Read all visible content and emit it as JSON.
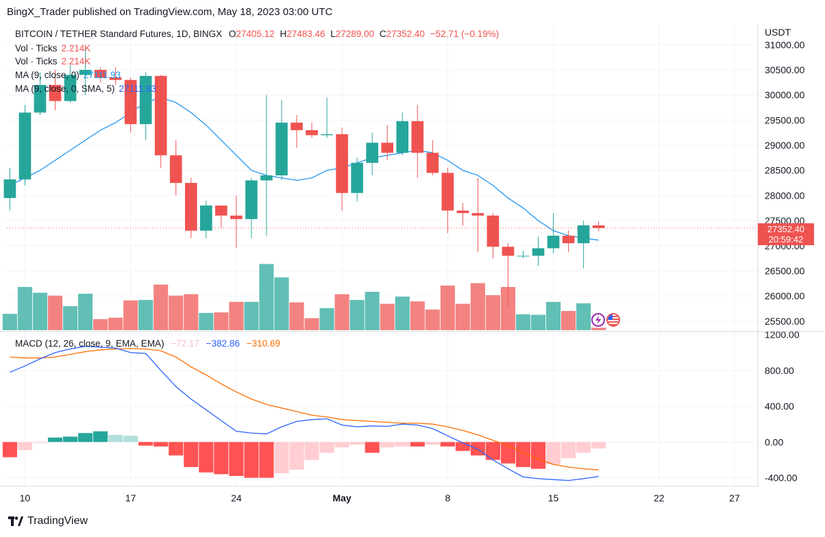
{
  "header": {
    "publisher": "BingX_Trader published on TradingView.com, May 18, 2023 03:00 UTC"
  },
  "legend": {
    "symbol": "BITCOIN / TETHER Standard Futures, 1D, BINGX",
    "o_label": "O",
    "o_value": "27405.12",
    "h_label": "H",
    "h_value": "27483.46",
    "l_label": "L",
    "l_value": "27289.00",
    "c_label": "C",
    "c_value": "27352.40",
    "change": "−52.71 (−0.19%)",
    "vol1_label": "Vol · Ticks",
    "vol1_value": "2.214K",
    "vol2_label": "Vol · Ticks",
    "vol2_value": "2.214K",
    "ma1_label": "MA (9, close, 0)",
    "ma1_value": "27111.93",
    "ma2_label": "MA (9, close, 0, SMA, 5)",
    "ma2_value": "27111.93",
    "macd_label": "MACD (12, 26, close, 9, EMA, EMA)",
    "macd_hist": "−72.17",
    "macd_line": "−382.86",
    "macd_signal": "−310.69"
  },
  "price_tag": {
    "price": "27352.40",
    "countdown": "20:59:42"
  },
  "footer": {
    "brand": "TradingView"
  },
  "colors": {
    "up": "#26a69a",
    "down": "#ef5350",
    "ma": "#2196f3",
    "macd": "#2962ff",
    "signal": "#ff6d00"
  },
  "chart_data": {
    "type": "candlestick",
    "currency": "USDT",
    "price_axis": {
      "ticks": [
        "25500.00",
        "26000.00",
        "26500.00",
        "27000.00",
        "27500.00",
        "28000.00",
        "28500.00",
        "29000.00",
        "29500.00",
        "30000.00",
        "30500.00",
        "31000.00"
      ],
      "range": [
        25320,
        31400
      ]
    },
    "macd_axis": {
      "ticks": [
        "-400.00",
        "0.00",
        "400.00",
        "800.00",
        "1200.00"
      ],
      "range": [
        -480,
        1220
      ]
    },
    "x_axis": {
      "ticks": [
        {
          "label": "10",
          "index": 1
        },
        {
          "label": "17",
          "index": 8
        },
        {
          "label": "24",
          "index": 15
        },
        {
          "label": "May",
          "index": 22
        },
        {
          "label": "8",
          "index": 29
        },
        {
          "label": "15",
          "index": 36
        },
        {
          "label": "22",
          "index": 43
        },
        {
          "label": "27",
          "index": 48
        }
      ],
      "index_range": [
        -0.2,
        49.5
      ]
    },
    "candles": [
      {
        "date": "Apr 9",
        "o": 27950,
        "h": 28550,
        "l": 27700,
        "c": 28320
      },
      {
        "date": "Apr 10",
        "o": 28320,
        "h": 29800,
        "l": 28200,
        "c": 29650
      },
      {
        "date": "Apr 11",
        "o": 29650,
        "h": 30450,
        "l": 29600,
        "c": 30200
      },
      {
        "date": "Apr 12",
        "o": 30200,
        "h": 30500,
        "l": 29700,
        "c": 29880
      },
      {
        "date": "Apr 13",
        "o": 29880,
        "h": 30600,
        "l": 29850,
        "c": 30400
      },
      {
        "date": "Apr 14",
        "o": 30400,
        "h": 30950,
        "l": 30000,
        "c": 30500
      },
      {
        "date": "Apr 15",
        "o": 30500,
        "h": 30550,
        "l": 30250,
        "c": 30350
      },
      {
        "date": "Apr 16",
        "o": 30350,
        "h": 30550,
        "l": 30200,
        "c": 30300
      },
      {
        "date": "Apr 17",
        "o": 30300,
        "h": 30350,
        "l": 29250,
        "c": 29420
      },
      {
        "date": "Apr 18",
        "o": 29420,
        "h": 30450,
        "l": 29100,
        "c": 30380
      },
      {
        "date": "Apr 19",
        "o": 30380,
        "h": 30400,
        "l": 28550,
        "c": 28800
      },
      {
        "date": "Apr 20",
        "o": 28800,
        "h": 29100,
        "l": 28000,
        "c": 28250
      },
      {
        "date": "Apr 21",
        "o": 28250,
        "h": 28350,
        "l": 27150,
        "c": 27300
      },
      {
        "date": "Apr 22",
        "o": 27300,
        "h": 27900,
        "l": 27150,
        "c": 27800
      },
      {
        "date": "Apr 23",
        "o": 27800,
        "h": 27800,
        "l": 27350,
        "c": 27600
      },
      {
        "date": "Apr 24",
        "o": 27600,
        "h": 28000,
        "l": 26950,
        "c": 27530
      },
      {
        "date": "Apr 25",
        "o": 27530,
        "h": 28350,
        "l": 27150,
        "c": 28300
      },
      {
        "date": "Apr 26",
        "o": 28300,
        "h": 30000,
        "l": 27200,
        "c": 28400
      },
      {
        "date": "Apr 27",
        "o": 28400,
        "h": 29900,
        "l": 28300,
        "c": 29450
      },
      {
        "date": "Apr 28",
        "o": 29450,
        "h": 29600,
        "l": 28950,
        "c": 29300
      },
      {
        "date": "Apr 29",
        "o": 29300,
        "h": 29450,
        "l": 29150,
        "c": 29200
      },
      {
        "date": "Apr 30",
        "o": 29200,
        "h": 29950,
        "l": 29150,
        "c": 29220
      },
      {
        "date": "May 1",
        "o": 29220,
        "h": 29350,
        "l": 27700,
        "c": 28050
      },
      {
        "date": "May 2",
        "o": 28050,
        "h": 28750,
        "l": 27880,
        "c": 28650
      },
      {
        "date": "May 3",
        "o": 28650,
        "h": 29250,
        "l": 28400,
        "c": 29050
      },
      {
        "date": "May 4",
        "o": 29050,
        "h": 29400,
        "l": 28700,
        "c": 28850
      },
      {
        "date": "May 5",
        "o": 28850,
        "h": 29650,
        "l": 28800,
        "c": 29480
      },
      {
        "date": "May 6",
        "o": 29480,
        "h": 29800,
        "l": 28350,
        "c": 28850
      },
      {
        "date": "May 7",
        "o": 28850,
        "h": 29100,
        "l": 28400,
        "c": 28450
      },
      {
        "date": "May 8",
        "o": 28450,
        "h": 28550,
        "l": 27250,
        "c": 27700
      },
      {
        "date": "May 9",
        "o": 27700,
        "h": 27850,
        "l": 27400,
        "c": 27650
      },
      {
        "date": "May 10",
        "o": 27650,
        "h": 28350,
        "l": 26880,
        "c": 27600
      },
      {
        "date": "May 11",
        "o": 27600,
        "h": 27650,
        "l": 26750,
        "c": 26980
      },
      {
        "date": "May 12",
        "o": 26980,
        "h": 27050,
        "l": 25800,
        "c": 26800
      },
      {
        "date": "May 13",
        "o": 26800,
        "h": 26900,
        "l": 26750,
        "c": 26800
      },
      {
        "date": "May 14",
        "o": 26800,
        "h": 27180,
        "l": 26600,
        "c": 26950
      },
      {
        "date": "May 15",
        "o": 26950,
        "h": 27650,
        "l": 26850,
        "c": 27200
      },
      {
        "date": "May 16",
        "o": 27200,
        "h": 27300,
        "l": 26870,
        "c": 27050
      },
      {
        "date": "May 17",
        "o": 27050,
        "h": 27500,
        "l": 26550,
        "c": 27405
      },
      {
        "date": "May 18",
        "o": 27405.12,
        "h": 27483.46,
        "l": 27289.0,
        "c": 27352.4
      }
    ],
    "volume_rel": [
      0.34,
      0.9,
      0.78,
      0.72,
      0.5,
      0.76,
      0.23,
      0.26,
      0.62,
      0.63,
      0.95,
      0.72,
      0.75,
      0.36,
      0.37,
      0.59,
      0.59,
      1.38,
      1.1,
      0.58,
      0.25,
      0.46,
      0.75,
      0.63,
      0.8,
      0.55,
      0.7,
      0.6,
      0.43,
      0.93,
      0.55,
      0.98,
      0.73,
      0.9,
      0.33,
      0.32,
      0.59,
      0.4,
      0.56,
      0.05
    ],
    "ma": [
      28200,
      28350,
      28500,
      28700,
      28900,
      29100,
      29300,
      29450,
      29650,
      29850,
      29950,
      29850,
      29650,
      29400,
      29100,
      28800,
      28500,
      28400,
      28350,
      28300,
      28350,
      28500,
      28550,
      28650,
      28750,
      28800,
      28850,
      28900,
      28850,
      28700,
      28500,
      28400,
      28200,
      27950,
      27750,
      27500,
      27300,
      27200,
      27150,
      27112
    ],
    "macd_line": [
      780,
      850,
      930,
      1000,
      1040,
      1070,
      1060,
      1050,
      1000,
      990,
      800,
      620,
      480,
      360,
      240,
      120,
      100,
      90,
      170,
      230,
      250,
      260,
      190,
      170,
      180,
      175,
      200,
      190,
      150,
      70,
      -10,
      -80,
      -200,
      -300,
      -390,
      -410,
      -420,
      -430,
      -410,
      -383
    ],
    "macd_signal": [
      950,
      940,
      940,
      950,
      980,
      1010,
      1030,
      1040,
      1045,
      1040,
      1020,
      950,
      840,
      750,
      650,
      560,
      480,
      420,
      380,
      340,
      300,
      280,
      250,
      240,
      230,
      220,
      210,
      210,
      200,
      170,
      130,
      80,
      20,
      -40,
      -120,
      -190,
      -250,
      -280,
      -300,
      -311
    ],
    "macd_hist": [
      -170,
      -90,
      -10,
      50,
      60,
      100,
      120,
      80,
      70,
      -40,
      -50,
      -150,
      -280,
      -340,
      -360,
      -380,
      -400,
      -400,
      -350,
      -310,
      -200,
      -120,
      -60,
      -30,
      -120,
      -60,
      -50,
      -50,
      -30,
      -50,
      -100,
      -150,
      -200,
      -240,
      -280,
      -300,
      -250,
      -180,
      -120,
      -72
    ]
  }
}
